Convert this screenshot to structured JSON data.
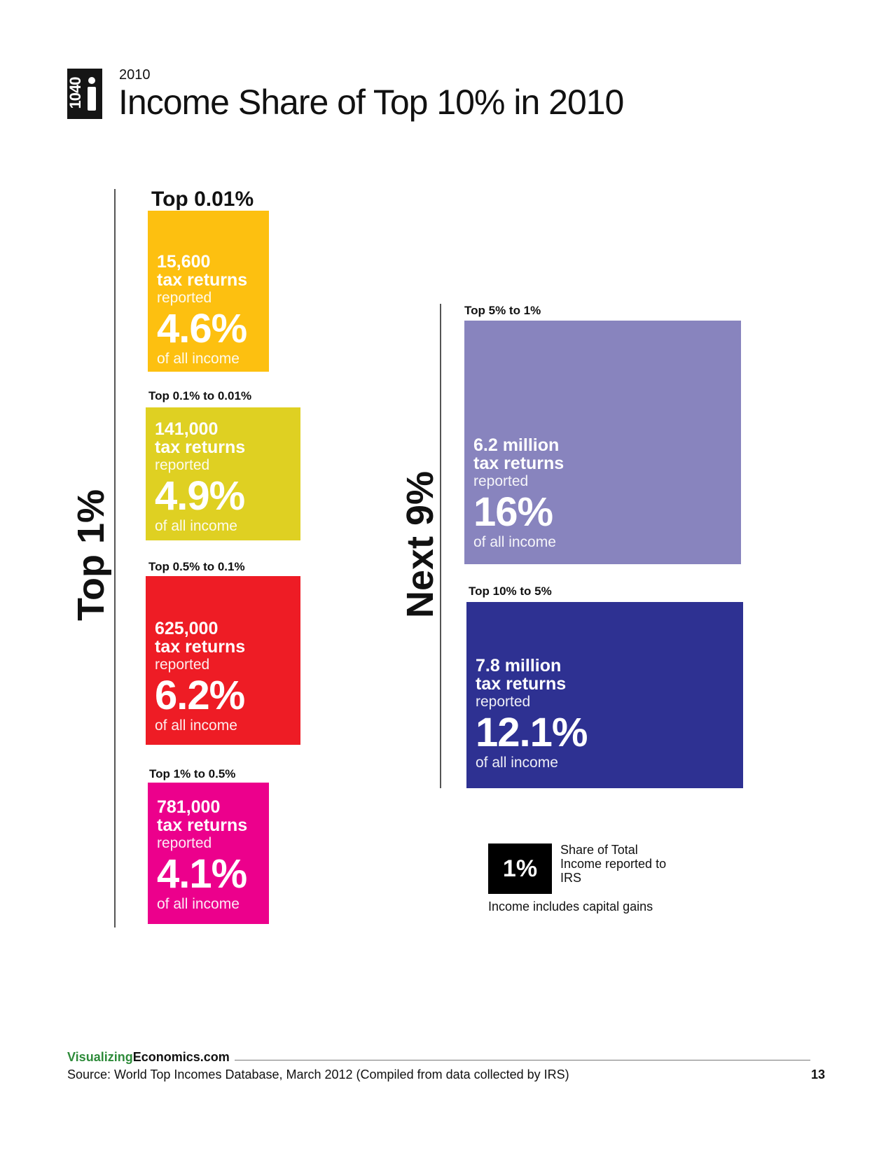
{
  "header": {
    "logo_text": "1040",
    "year": "2010",
    "title": "Income Share of Top 10% in 2010"
  },
  "groups": {
    "top1_label": "Top 1%",
    "next9_label": "Next 9%"
  },
  "chart_data": {
    "type": "treemap",
    "title": "Income Share of Top 10% in 2010",
    "subtitle": "2010",
    "unit": "% of all income",
    "groups": [
      {
        "name": "Top 1%",
        "segments": [
          {
            "label": "Top 0.01%",
            "tax_returns": "15,600",
            "count_unit": "tax returns",
            "share": 4.6,
            "share_text": "4.6%",
            "color": "#fdc010"
          },
          {
            "label": "Top 0.1% to 0.01%",
            "tax_returns": "141,000",
            "count_unit": "tax returns",
            "share": 4.9,
            "share_text": "4.9%",
            "color": "#dfd022"
          },
          {
            "label": "Top 0.5% to 0.1%",
            "tax_returns": "625,000",
            "count_unit": "tax returns",
            "share": 6.2,
            "share_text": "6.2%",
            "color": "#ee1c25"
          },
          {
            "label": "Top 1% to 0.5%",
            "tax_returns": "781,000",
            "count_unit": "tax returns",
            "share": 4.1,
            "share_text": "4.1%",
            "color": "#ec008c"
          }
        ]
      },
      {
        "name": "Next 9%",
        "segments": [
          {
            "label": "Top 5% to 1%",
            "tax_returns": "6.2 million",
            "count_unit": "tax returns",
            "share": 16,
            "share_text": "16%",
            "color": "#8884be"
          },
          {
            "label": "Top 10% to 5%",
            "tax_returns": "7.8 million",
            "count_unit": "tax returns",
            "share": 12.1,
            "share_text": "12.1%",
            "color": "#2e3192"
          }
        ]
      }
    ],
    "reported_word": "reported",
    "income_phrase": "of all income",
    "legend": {
      "sample_value": "1%",
      "description": "Share of Total Income reported to IRS",
      "color": "#000000"
    },
    "note": "Income includes capital gains"
  },
  "footer": {
    "site_green": "Visualizing",
    "site_rest": "Economics.com",
    "source": "Source: World Top Incomes Database, March 2012 (Compiled from data collected by IRS)",
    "page_number": "13"
  }
}
